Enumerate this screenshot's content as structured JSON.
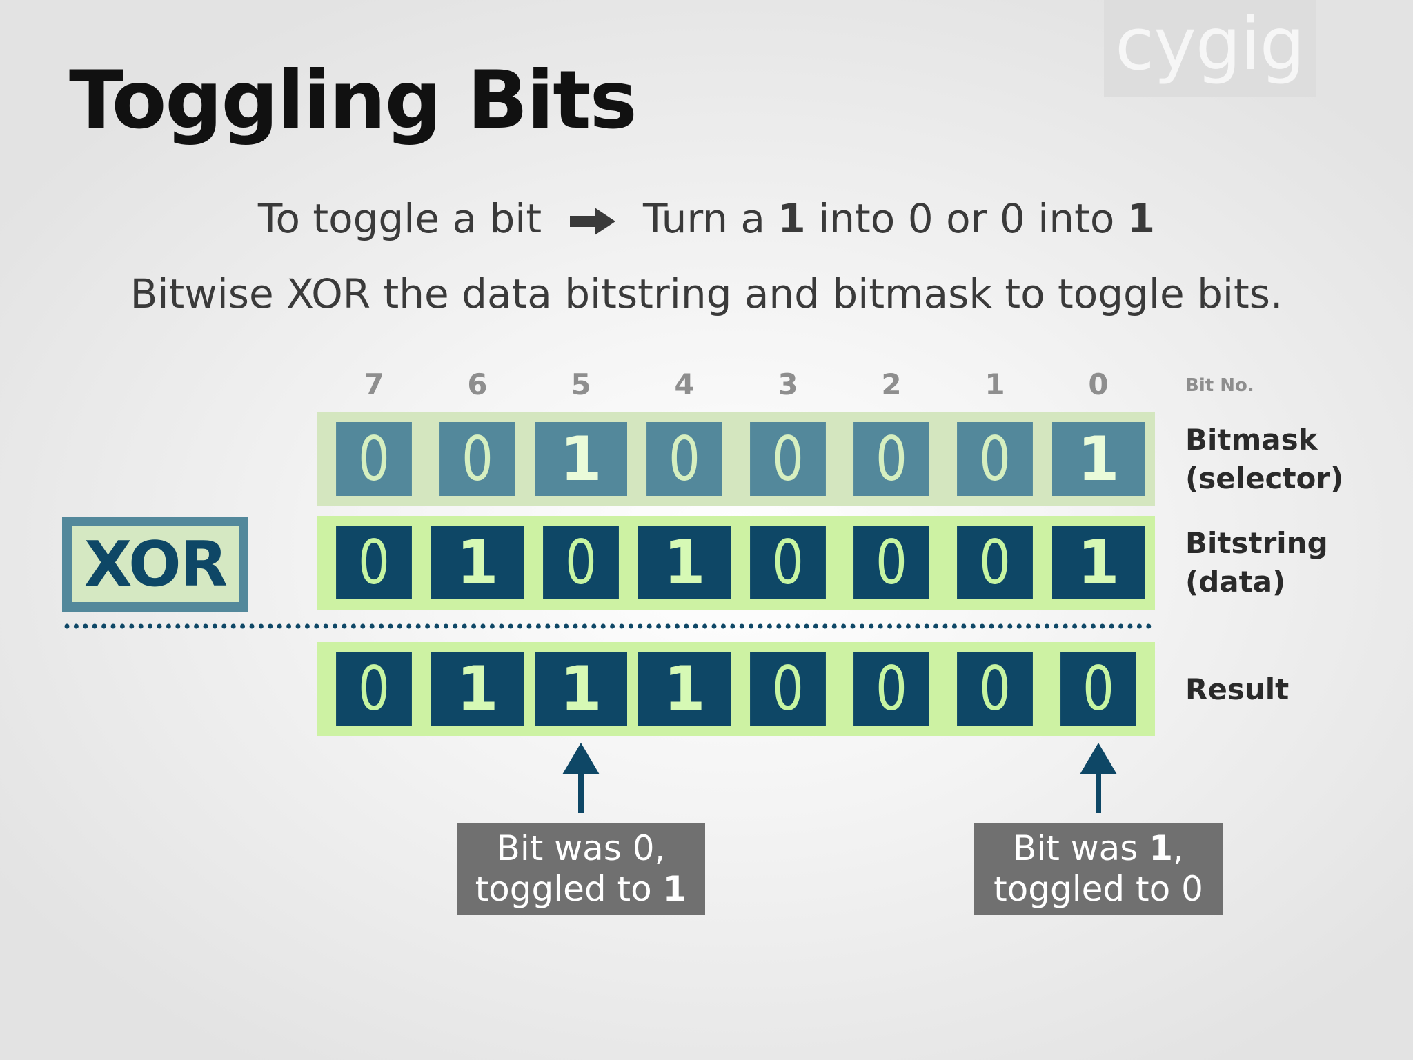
{
  "title": "Toggling Bits",
  "watermark": "cygig",
  "intro": {
    "line1_a": "To toggle a bit",
    "line1_b": "Turn a",
    "one_a": "1",
    "line1_c": "into",
    "zero_a": "0",
    "line1_d": "or",
    "zero_b": "0",
    "line1_e": "into",
    "one_b": "1",
    "line2": "Bitwise XOR the data bitstring and bitmask to toggle bits."
  },
  "bit_numbers": [
    "7",
    "6",
    "5",
    "4",
    "3",
    "2",
    "1",
    "0"
  ],
  "bit_no_label": "Bit No.",
  "rows": {
    "bitmask": {
      "bits": [
        "0",
        "0",
        "1",
        "0",
        "0",
        "0",
        "0",
        "1"
      ],
      "label_line1": "Bitmask",
      "label_line2": "(selector)"
    },
    "bitstring": {
      "bits": [
        "0",
        "1",
        "0",
        "1",
        "0",
        "0",
        "0",
        "1"
      ],
      "label_line1": "Bitstring",
      "label_line2": "(data)"
    },
    "result": {
      "bits": [
        "0",
        "1",
        "1",
        "1",
        "0",
        "0",
        "0",
        "0"
      ],
      "label": "Result"
    }
  },
  "operator": "XOR",
  "notes": {
    "left": {
      "a": "Bit was",
      "b": "0,",
      "c": "toggled to",
      "d": "1"
    },
    "right": {
      "a": "Bit was",
      "b": "1",
      "comma": ",",
      "c": "toggled to",
      "d": "0"
    }
  },
  "colors": {
    "mask_cell": "#53889b",
    "data_cell": "#0e4766",
    "mask_frame": "#d4e6bf",
    "data_frame": "#cdf2a3",
    "note_bg": "#707070"
  }
}
